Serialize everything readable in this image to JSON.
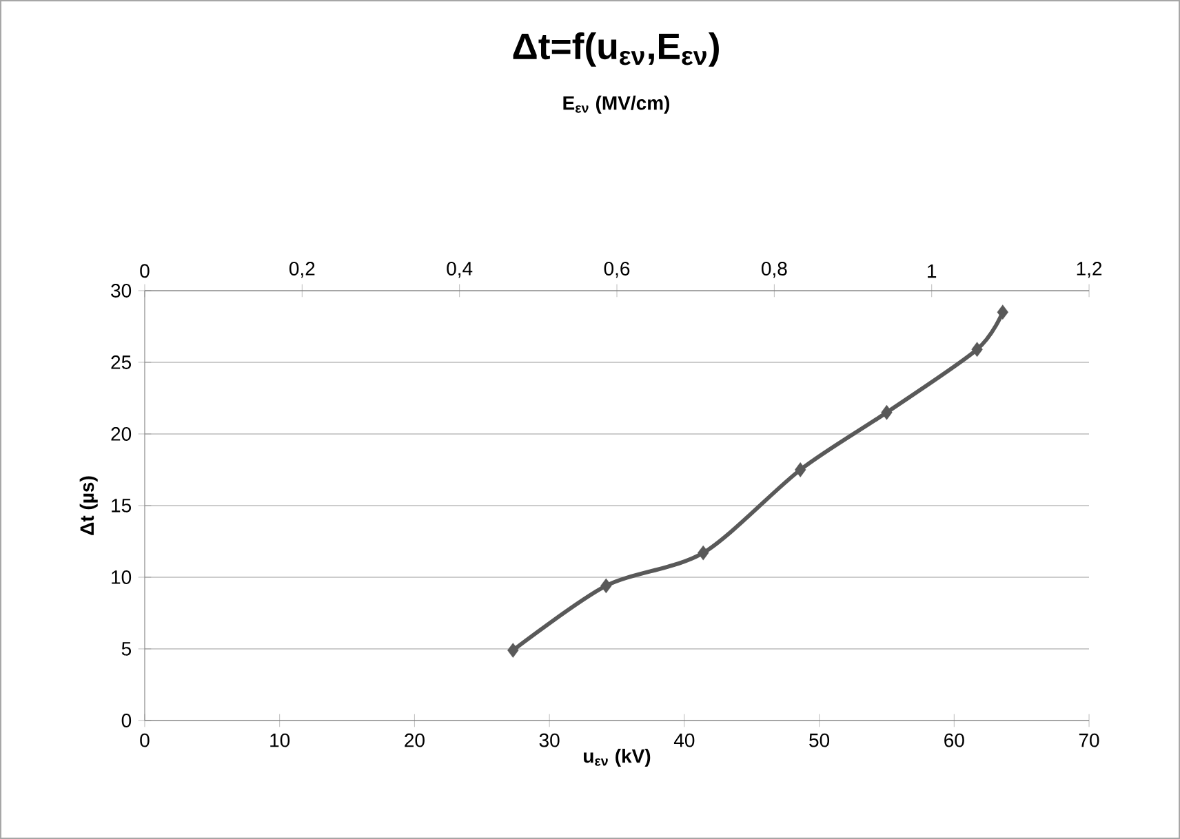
{
  "chart_data": {
    "type": "line",
    "title": "Δt=f(u$_{εν}$,E$_{εν}$)",
    "xlabel": "u$_{εν}$ (kV)",
    "x2label": "E$_{εν}$ (MV/cm)",
    "ylabel": "Δt (µs)",
    "x": [
      27.3,
      34.2,
      41.4,
      48.6,
      55.0,
      61.7,
      63.6
    ],
    "series": [
      {
        "color": "#595959",
        "values": [
          4.9,
          9.4,
          11.7,
          17.5,
          21.5,
          25.9,
          28.5
        ]
      }
    ],
    "xlim": [
      0,
      70
    ],
    "xticks": [
      0,
      10,
      20,
      30,
      40,
      50,
      60,
      70
    ],
    "ylim": [
      0,
      30
    ],
    "yticks": [
      0,
      5,
      10,
      15,
      20,
      25,
      30
    ],
    "x2lim": [
      0,
      1.2
    ],
    "x2ticks": [
      0,
      {
        "value": 0.2,
        "label": "0,2"
      },
      {
        "value": 0.4,
        "label": "0,4"
      },
      {
        "value": 0.6,
        "label": "0,6"
      },
      {
        "value": 0.8,
        "label": "0,8"
      },
      1,
      {
        "value": 1.2,
        "label": "1,2"
      }
    ],
    "grid": "y",
    "marker": "diamond",
    "line_style": "solid"
  }
}
